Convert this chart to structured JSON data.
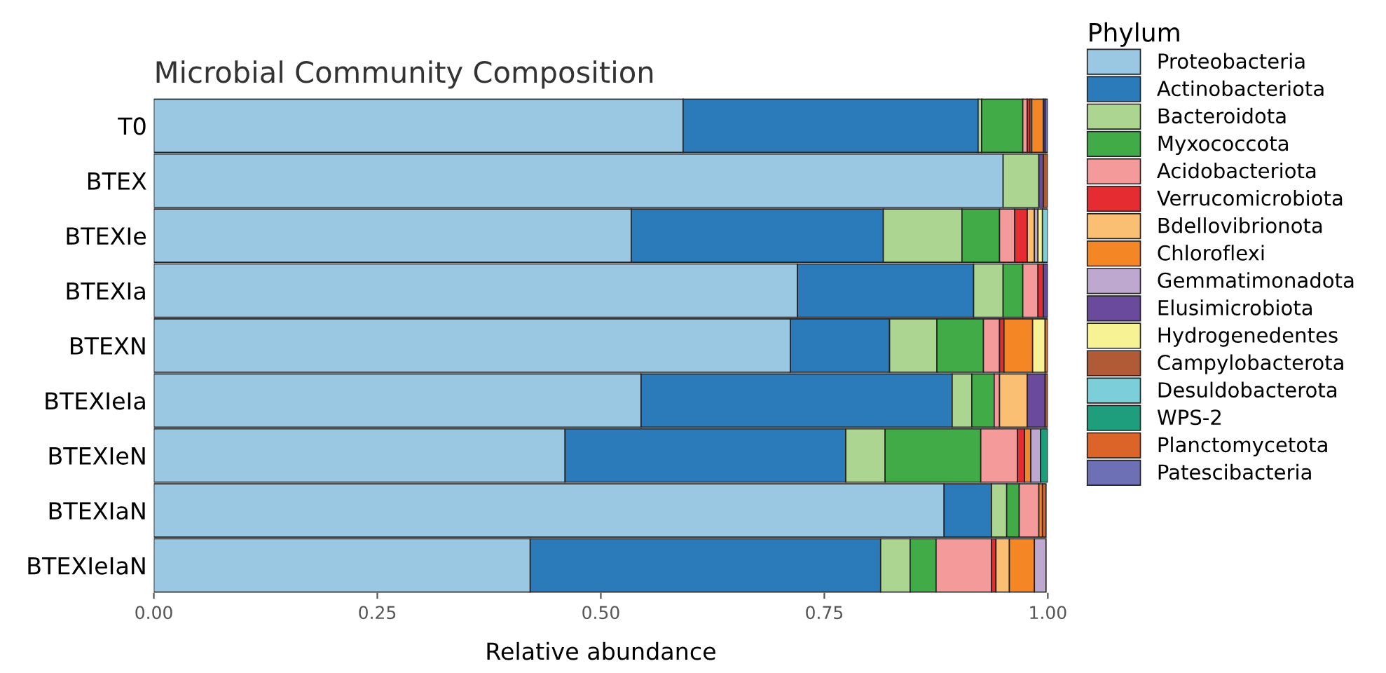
{
  "chart_data": {
    "type": "bar",
    "orientation": "horizontal",
    "stacked": true,
    "title": "Microbial Community Composition",
    "xlabel": "Relative abundance",
    "legend_title": "Phylum",
    "legend": "right",
    "categories": [
      "T0",
      "BTEX",
      "BTEXIe",
      "BTEXIa",
      "BTEXN",
      "BTEXIeIa",
      "BTEXIeN",
      "BTEXIaN",
      "BTEXIeIaN"
    ],
    "xlim": [
      0,
      1
    ],
    "xticks": [
      {
        "value": 0,
        "label": "0.00"
      },
      {
        "value": 0.25,
        "label": "0.25"
      },
      {
        "value": 0.5,
        "label": "0.50"
      },
      {
        "value": 0.75,
        "label": "0.75"
      },
      {
        "value": 1,
        "label": "1.00"
      }
    ],
    "series": [
      {
        "name": "Proteobacteria",
        "color": "#9ac8e2",
        "values": [
          0.592,
          0.95,
          0.534,
          0.72,
          0.712,
          0.545,
          0.46,
          0.884,
          0.421
        ]
      },
      {
        "name": "Actinobacteriota",
        "color": "#2b7bba",
        "values": [
          0.33,
          0,
          0.282,
          0.197,
          0.111,
          0.348,
          0.314,
          0.053,
          0.392
        ]
      },
      {
        "name": "Bacteroidota",
        "color": "#acd591",
        "values": [
          0.004,
          0.04,
          0.088,
          0.033,
          0.053,
          0.022,
          0.044,
          0.017,
          0.033
        ]
      },
      {
        "name": "Myxococcota",
        "color": "#41ab48",
        "values": [
          0.046,
          0,
          0.042,
          0.022,
          0.052,
          0.025,
          0.107,
          0.014,
          0.029
        ]
      },
      {
        "name": "Acidobacteriota",
        "color": "#f49a9a",
        "values": [
          0.005,
          0,
          0.017,
          0.017,
          0.018,
          0.006,
          0.041,
          0.022,
          0.062
        ]
      },
      {
        "name": "Verrucomicrobiota",
        "color": "#e52c30",
        "values": [
          0.003,
          0,
          0.014,
          0.006,
          0.005,
          0,
          0.008,
          0,
          0.005
        ]
      },
      {
        "name": "Bdellovibrionota",
        "color": "#fbbf74",
        "values": [
          0.002,
          0,
          0.008,
          0,
          0,
          0.031,
          0,
          0,
          0.015
        ]
      },
      {
        "name": "Chloroflexi",
        "color": "#f58625",
        "values": [
          0.013,
          0,
          0,
          0,
          0.032,
          0,
          0.007,
          0.004,
          0.028
        ]
      },
      {
        "name": "Gemmatimonadota",
        "color": "#bfa8d0",
        "values": [
          0,
          0,
          0.004,
          0,
          0,
          0,
          0.011,
          0,
          0.013
        ]
      },
      {
        "name": "Elusimicrobiota",
        "color": "#6a4a9c",
        "values": [
          0.002,
          0.005,
          0,
          0.005,
          0,
          0.02,
          0,
          0,
          0
        ]
      },
      {
        "name": "Hydrogenedentes",
        "color": "#f7f394",
        "values": [
          0,
          0,
          0.005,
          0,
          0.014,
          0,
          0,
          0,
          0
        ]
      },
      {
        "name": "Campylobacterota",
        "color": "#b05b35",
        "values": [
          0,
          0.005,
          0,
          0,
          0,
          0.003,
          0,
          0,
          0
        ]
      },
      {
        "name": "Desuldobacterota",
        "color": "#7ccfd8",
        "values": [
          0,
          0,
          0.006,
          0,
          0,
          0,
          0,
          0,
          0
        ]
      },
      {
        "name": "WPS-2",
        "color": "#1f9e7d",
        "values": [
          0,
          0,
          0,
          0,
          0,
          0,
          0.008,
          0,
          0
        ]
      },
      {
        "name": "Planctomycetota",
        "color": "#dd6428",
        "values": [
          0,
          0,
          0,
          0,
          0.003,
          0,
          0,
          0.004,
          0
        ]
      },
      {
        "name": "Patescibacteria",
        "color": "#6e70b5",
        "values": [
          0.003,
          0,
          0,
          0,
          0,
          0,
          0,
          0,
          0
        ]
      }
    ]
  }
}
